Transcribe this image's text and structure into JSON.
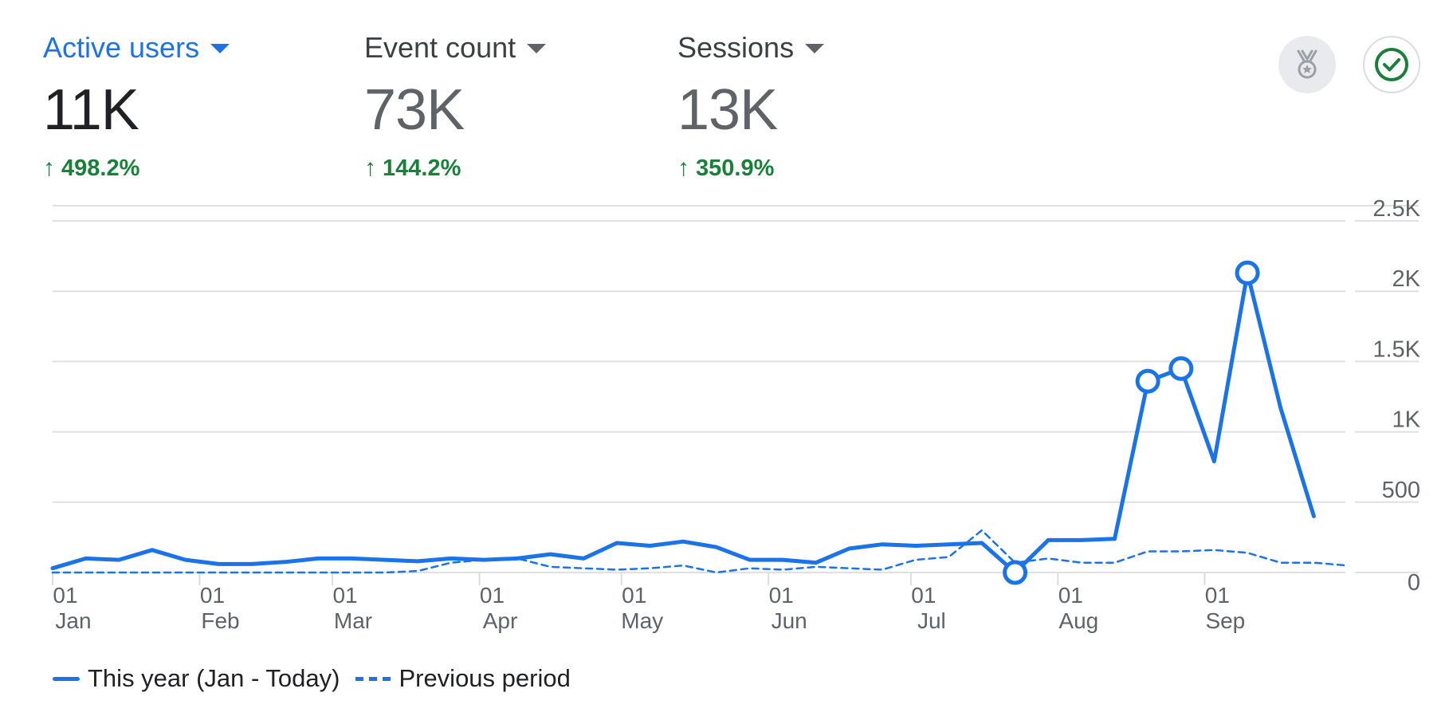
{
  "metrics": [
    {
      "label": "Active users",
      "value": "11K",
      "change": "498.2%"
    },
    {
      "label": "Event count",
      "value": "73K",
      "change": "144.2%"
    },
    {
      "label": "Sessions",
      "value": "13K",
      "change": "350.9%"
    }
  ],
  "icons": {
    "badge": "medal-icon",
    "check": "check-circle-icon",
    "arrow": "arrow-up-icon"
  },
  "colors": {
    "accent": "#1a73e8",
    "positive": "#188038",
    "grid": "#e0e0e0"
  },
  "legend": {
    "current": "This year (Jan - Today)",
    "previous": "Previous period"
  },
  "chart_data": {
    "type": "line",
    "y_axis": {
      "ticks": [
        "0",
        "500",
        "1K",
        "1.5K",
        "2K",
        "2.5K"
      ],
      "tick_values": [
        0,
        500,
        1000,
        1500,
        2000,
        2500
      ],
      "min": 0,
      "max": 2500,
      "position": "right"
    },
    "x_axis": {
      "ticks": [
        {
          "day": "01",
          "month": "Jan",
          "week": 0
        },
        {
          "day": "01",
          "month": "Feb",
          "week": 4.43
        },
        {
          "day": "01",
          "month": "Mar",
          "week": 8.43
        },
        {
          "day": "01",
          "month": "Apr",
          "week": 12.86
        },
        {
          "day": "01",
          "month": "May",
          "week": 17.14
        },
        {
          "day": "01",
          "month": "Jun",
          "week": 21.57
        },
        {
          "day": "01",
          "month": "Jul",
          "week": 25.86
        },
        {
          "day": "01",
          "month": "Aug",
          "week": 30.29
        },
        {
          "day": "01",
          "month": "Sep",
          "week": 34.71
        }
      ],
      "min_week": 0,
      "max_week": 39
    },
    "series": [
      {
        "name": "This year (Jan - Today)",
        "style": "solid",
        "x": [
          0,
          1,
          2,
          3,
          4,
          5,
          6,
          7,
          8,
          9,
          10,
          11,
          12,
          13,
          14,
          15,
          16,
          17,
          18,
          19,
          20,
          21,
          22,
          23,
          24,
          25,
          26,
          27,
          28,
          29,
          30,
          31,
          32,
          33,
          34,
          35,
          36,
          37,
          38,
          39
        ],
        "values": [
          30,
          100,
          90,
          160,
          90,
          60,
          60,
          75,
          100,
          100,
          90,
          80,
          100,
          90,
          100,
          130,
          100,
          210,
          190,
          220,
          180,
          90,
          90,
          70,
          170,
          200,
          190,
          200,
          210,
          0,
          230,
          230,
          240,
          1360,
          1450,
          790,
          2130,
          1170,
          400,
          null
        ],
        "highlighted_x": [
          29,
          33,
          34,
          36
        ]
      },
      {
        "name": "Previous period",
        "style": "dashed",
        "x": [
          0,
          1,
          2,
          3,
          4,
          5,
          6,
          7,
          8,
          9,
          10,
          11,
          12,
          13,
          14,
          15,
          16,
          17,
          18,
          19,
          20,
          21,
          22,
          23,
          24,
          25,
          26,
          27,
          28,
          29,
          30,
          31,
          32,
          33,
          34,
          35,
          36,
          37,
          38,
          39
        ],
        "values": [
          0,
          0,
          0,
          0,
          0,
          0,
          0,
          0,
          0,
          0,
          0,
          10,
          70,
          90,
          100,
          40,
          30,
          20,
          30,
          50,
          0,
          30,
          20,
          40,
          30,
          20,
          90,
          110,
          300,
          70,
          100,
          70,
          70,
          150,
          150,
          160,
          140,
          70,
          70,
          50
        ]
      }
    ],
    "grid": true
  }
}
